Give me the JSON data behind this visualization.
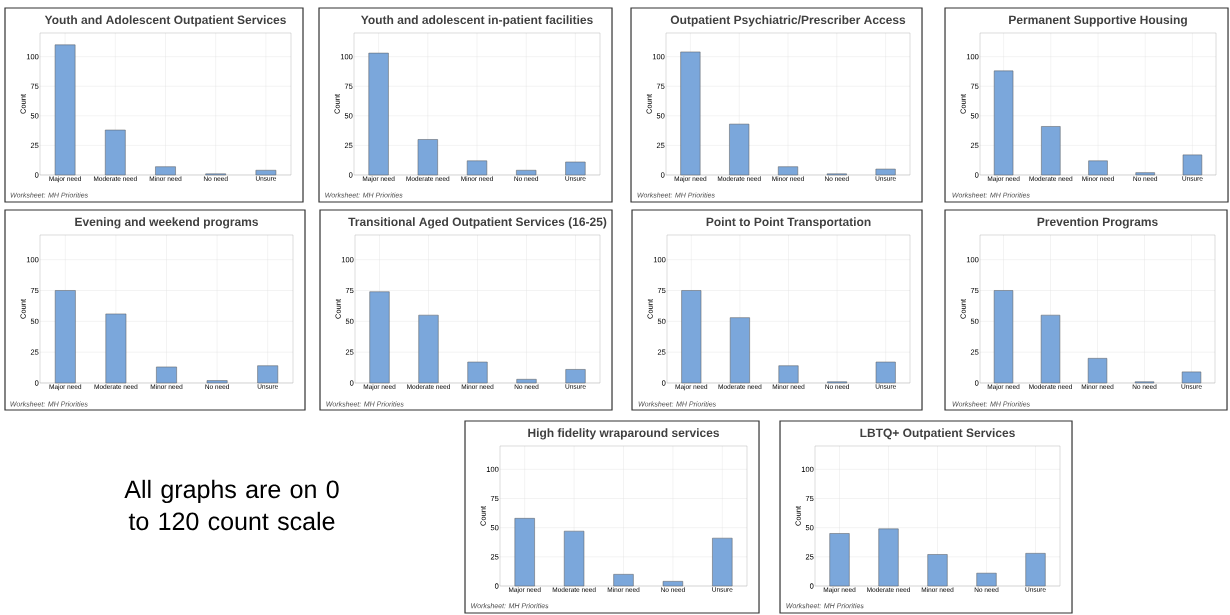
{
  "chart_data": [
    {
      "type": "bar",
      "title": "Youth and Adolescent Outpatient Services",
      "ylabel": "Count",
      "categories": [
        "Major need",
        "Moderate need",
        "Minor need",
        "No need",
        "Unsure"
      ],
      "values": [
        110,
        38,
        7,
        1,
        4
      ],
      "color": "#7ba7db",
      "ylim": [
        0,
        120
      ],
      "yticks": [
        0,
        25,
        50,
        75,
        100
      ],
      "grid": true,
      "annotations": [
        "Worksheet: MH Priorities"
      ]
    },
    {
      "type": "bar",
      "title": "Youth and adolescent in-patient facilities",
      "ylabel": "Count",
      "categories": [
        "Major need",
        "Moderate need",
        "Minor need",
        "No need",
        "Unsure"
      ],
      "values": [
        103,
        30,
        12,
        4,
        11
      ],
      "color": "#7ba7db",
      "ylim": [
        0,
        120
      ],
      "yticks": [
        0,
        25,
        50,
        75,
        100
      ],
      "grid": true,
      "annotations": [
        "Worksheet: MH Priorities"
      ]
    },
    {
      "type": "bar",
      "title": "Outpatient Psychiatric/Prescriber Access",
      "ylabel": "Count",
      "categories": [
        "Major need",
        "Moderate need",
        "Minor need",
        "No need",
        "Unsure"
      ],
      "values": [
        104,
        43,
        7,
        1,
        5
      ],
      "color": "#7ba7db",
      "ylim": [
        0,
        120
      ],
      "yticks": [
        0,
        25,
        50,
        75,
        100
      ],
      "grid": true,
      "annotations": [
        "Worksheet: MH Priorities"
      ]
    },
    {
      "type": "bar",
      "title": "Permanent Supportive Housing",
      "ylabel": "Count",
      "categories": [
        "Major need",
        "Moderate need",
        "Minor need",
        "No need",
        "Unsure"
      ],
      "values": [
        88,
        41,
        12,
        2,
        17
      ],
      "color": "#7ba7db",
      "ylim": [
        0,
        120
      ],
      "yticks": [
        0,
        25,
        50,
        75,
        100
      ],
      "grid": true,
      "annotations": [
        "Worksheet: MH Priorities"
      ]
    },
    {
      "type": "bar",
      "title": "Evening and weekend programs",
      "ylabel": "Count",
      "categories": [
        "Major need",
        "Moderate need",
        "Minor need",
        "No need",
        "Unsure"
      ],
      "values": [
        75,
        56,
        13,
        2,
        14
      ],
      "color": "#7ba7db",
      "ylim": [
        0,
        120
      ],
      "yticks": [
        0,
        25,
        50,
        75,
        100
      ],
      "grid": true,
      "annotations": [
        "Worksheet: MH Priorities"
      ]
    },
    {
      "type": "bar",
      "title": "Transitional Aged Outpatient Services (16-25)",
      "ylabel": "Count",
      "categories": [
        "Major need",
        "Moderate need",
        "Minor need",
        "No need",
        "Unsure"
      ],
      "values": [
        74,
        55,
        17,
        3,
        11
      ],
      "color": "#7ba7db",
      "ylim": [
        0,
        120
      ],
      "yticks": [
        0,
        25,
        50,
        75,
        100
      ],
      "grid": true,
      "annotations": [
        "Worksheet: MH Priorities"
      ]
    },
    {
      "type": "bar",
      "title": "Point to Point Transportation",
      "ylabel": "Count",
      "categories": [
        "Major need",
        "Moderate need",
        "Minor need",
        "No need",
        "Unsure"
      ],
      "values": [
        75,
        53,
        14,
        1,
        17
      ],
      "color": "#7ba7db",
      "ylim": [
        0,
        120
      ],
      "yticks": [
        0,
        25,
        50,
        75,
        100
      ],
      "grid": true,
      "annotations": [
        "Worksheet: MH Priorities"
      ]
    },
    {
      "type": "bar",
      "title": "Prevention Programs",
      "ylabel": "Count",
      "categories": [
        "Major need",
        "Moderate need",
        "Minor need",
        "No need",
        "Unsure"
      ],
      "values": [
        75,
        55,
        20,
        1,
        9
      ],
      "color": "#7ba7db",
      "ylim": [
        0,
        120
      ],
      "yticks": [
        0,
        25,
        50,
        75,
        100
      ],
      "grid": true,
      "annotations": [
        "Worksheet: MH Priorities"
      ]
    },
    {
      "type": "bar",
      "title": "High fidelity wraparound services",
      "ylabel": "Count",
      "categories": [
        "Major need",
        "Moderate need",
        "Minor need",
        "No need",
        "Unsure"
      ],
      "values": [
        58,
        47,
        10,
        4,
        41
      ],
      "color": "#7ba7db",
      "ylim": [
        0,
        120
      ],
      "yticks": [
        0,
        25,
        50,
        75,
        100
      ],
      "grid": true,
      "annotations": [
        "Worksheet: MH Priorities"
      ]
    },
    {
      "type": "bar",
      "title": "LBTQ+ Outpatient Services",
      "ylabel": "Count",
      "categories": [
        "Major need",
        "Moderate need",
        "Minor need",
        "No need",
        "Unsure"
      ],
      "values": [
        45,
        49,
        27,
        11,
        28
      ],
      "color": "#7ba7db",
      "ylim": [
        0,
        120
      ],
      "yticks": [
        0,
        25,
        50,
        75,
        100
      ],
      "grid": true,
      "annotations": [
        "Worksheet: MH Priorities"
      ]
    },
    {
      "type": "other",
      "annotations": [
        "All graphs are on 0 to 120 count scale"
      ]
    }
  ]
}
